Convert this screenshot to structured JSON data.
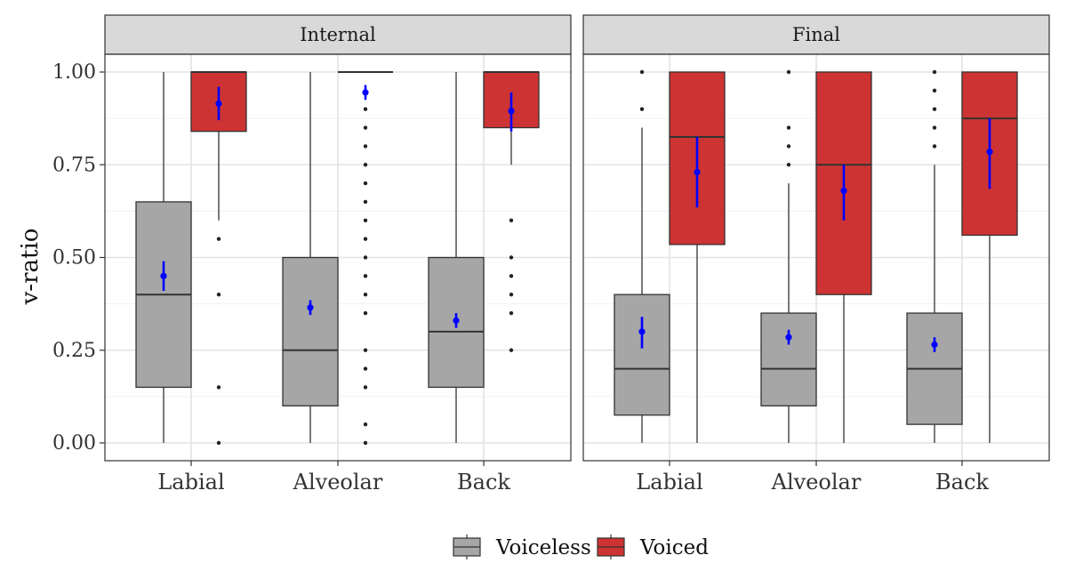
{
  "chart_data": {
    "type": "boxplot",
    "ylabel": "v-ratio",
    "xlabel": "",
    "ylim": [
      -0.04,
      1.04
    ],
    "yticks": [
      0.0,
      0.25,
      0.5,
      0.75,
      1.0
    ],
    "ytick_labels": [
      "0.00",
      "0.25",
      "0.50",
      "0.75",
      "1.00"
    ],
    "grid": true,
    "legend_position": "bottom",
    "facets": [
      "Internal",
      "Final"
    ],
    "categories": [
      "Labial",
      "Alveolar",
      "Back"
    ],
    "groups": [
      {
        "name": "Voiceless",
        "color": "#a6a6a6"
      },
      {
        "name": "Voiced",
        "color": "#cd3333"
      }
    ],
    "mean_marker_color": "#0000ff",
    "boxes": [
      {
        "facet": "Internal",
        "category": "Labial",
        "group": "Voiceless",
        "q1": 0.15,
        "median": 0.4,
        "q3": 0.65,
        "whisker_low": 0.0,
        "whisker_high": 1.0,
        "outliers": [],
        "mean": 0.45,
        "mean_ci": [
          0.41,
          0.49
        ]
      },
      {
        "facet": "Internal",
        "category": "Labial",
        "group": "Voiced",
        "q1": 0.84,
        "median": 1.0,
        "q3": 1.0,
        "whisker_low": 0.6,
        "whisker_high": 1.0,
        "outliers": [
          0.55,
          0.4,
          0.15,
          0.0
        ],
        "mean": 0.915,
        "mean_ci": [
          0.87,
          0.96
        ]
      },
      {
        "facet": "Internal",
        "category": "Alveolar",
        "group": "Voiceless",
        "q1": 0.1,
        "median": 0.25,
        "q3": 0.5,
        "whisker_low": 0.0,
        "whisker_high": 1.0,
        "outliers": [],
        "mean": 0.365,
        "mean_ci": [
          0.345,
          0.385
        ]
      },
      {
        "facet": "Internal",
        "category": "Alveolar",
        "group": "Voiced",
        "q1": 1.0,
        "median": 1.0,
        "q3": 1.0,
        "whisker_low": 1.0,
        "whisker_high": 1.0,
        "outliers": [
          0.9,
          0.85,
          0.8,
          0.75,
          0.7,
          0.65,
          0.6,
          0.55,
          0.5,
          0.45,
          0.4,
          0.35,
          0.25,
          0.2,
          0.15,
          0.05,
          0.0
        ],
        "mean": 0.945,
        "mean_ci": [
          0.925,
          0.965
        ]
      },
      {
        "facet": "Internal",
        "category": "Back",
        "group": "Voiceless",
        "q1": 0.15,
        "median": 0.3,
        "q3": 0.5,
        "whisker_low": 0.0,
        "whisker_high": 1.0,
        "outliers": [],
        "mean": 0.33,
        "mean_ci": [
          0.31,
          0.35
        ]
      },
      {
        "facet": "Internal",
        "category": "Back",
        "group": "Voiced",
        "q1": 0.85,
        "median": 1.0,
        "q3": 1.0,
        "whisker_low": 0.75,
        "whisker_high": 1.0,
        "outliers": [
          0.6,
          0.5,
          0.45,
          0.4,
          0.35,
          0.25
        ],
        "mean": 0.895,
        "mean_ci": [
          0.84,
          0.945
        ]
      },
      {
        "facet": "Final",
        "category": "Labial",
        "group": "Voiceless",
        "q1": 0.075,
        "median": 0.2,
        "q3": 0.4,
        "whisker_low": 0.0,
        "whisker_high": 0.85,
        "outliers": [
          1.0,
          0.9
        ],
        "mean": 0.3,
        "mean_ci": [
          0.255,
          0.34
        ]
      },
      {
        "facet": "Final",
        "category": "Labial",
        "group": "Voiced",
        "q1": 0.535,
        "median": 0.825,
        "q3": 1.0,
        "whisker_low": 0.0,
        "whisker_high": 1.0,
        "outliers": [],
        "mean": 0.73,
        "mean_ci": [
          0.635,
          0.825
        ]
      },
      {
        "facet": "Final",
        "category": "Alveolar",
        "group": "Voiceless",
        "q1": 0.1,
        "median": 0.2,
        "q3": 0.35,
        "whisker_low": 0.0,
        "whisker_high": 0.7,
        "outliers": [
          1.0,
          0.85,
          0.8,
          0.75
        ],
        "mean": 0.285,
        "mean_ci": [
          0.265,
          0.305
        ]
      },
      {
        "facet": "Final",
        "category": "Alveolar",
        "group": "Voiced",
        "q1": 0.4,
        "median": 0.75,
        "q3": 1.0,
        "whisker_low": 0.0,
        "whisker_high": 1.0,
        "outliers": [],
        "mean": 0.68,
        "mean_ci": [
          0.6,
          0.75
        ]
      },
      {
        "facet": "Final",
        "category": "Back",
        "group": "Voiceless",
        "q1": 0.05,
        "median": 0.2,
        "q3": 0.35,
        "whisker_low": 0.0,
        "whisker_high": 0.75,
        "outliers": [
          1.0,
          0.95,
          0.9,
          0.85,
          0.8
        ],
        "mean": 0.265,
        "mean_ci": [
          0.245,
          0.285
        ]
      },
      {
        "facet": "Final",
        "category": "Back",
        "group": "Voiced",
        "q1": 0.56,
        "median": 0.875,
        "q3": 1.0,
        "whisker_low": 0.0,
        "whisker_high": 1.0,
        "outliers": [],
        "mean": 0.785,
        "mean_ci": [
          0.685,
          0.875
        ]
      }
    ]
  }
}
